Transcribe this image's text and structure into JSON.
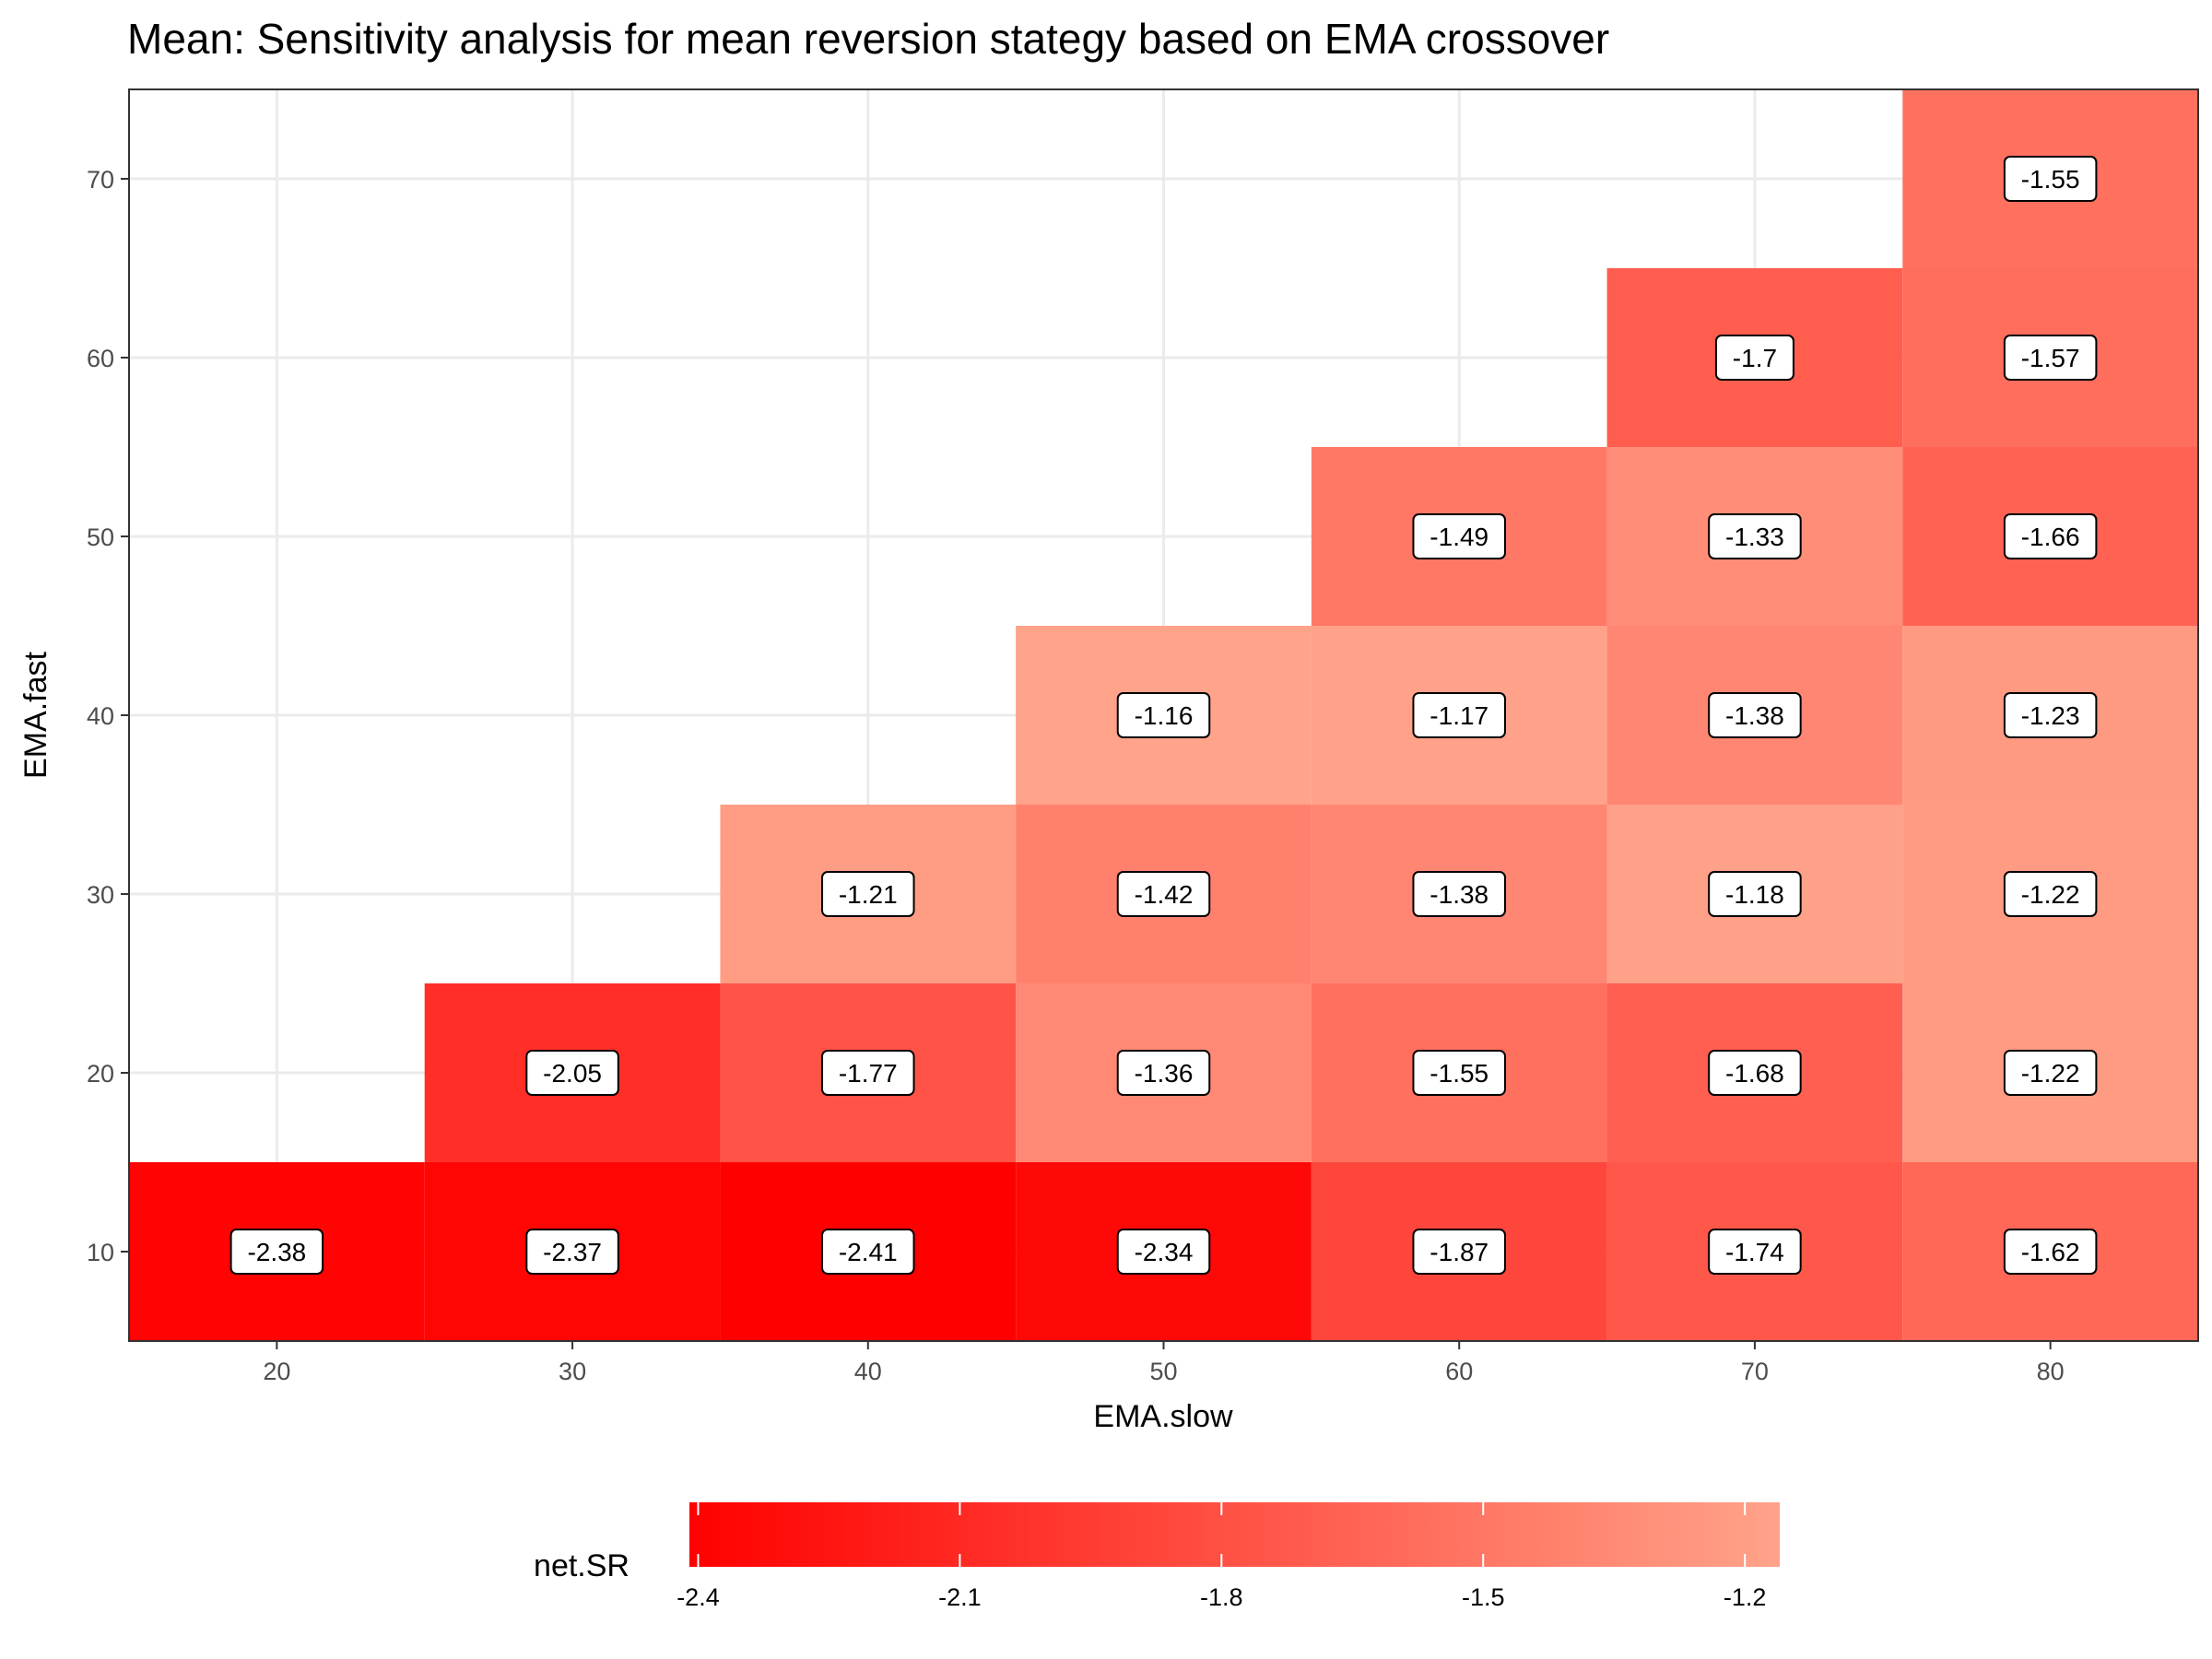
{
  "chart_data": {
    "type": "heatmap",
    "title": "Mean: Sensitivity analysis for mean reversion stategy based on EMA crossover",
    "xlabel": "EMA.slow",
    "ylabel": "EMA.fast",
    "x_ticks": [
      20,
      30,
      40,
      50,
      60,
      70,
      80
    ],
    "y_ticks": [
      10,
      20,
      30,
      40,
      50,
      60,
      70
    ],
    "xlim": [
      15,
      85
    ],
    "ylim": [
      5,
      75
    ],
    "grid": true,
    "cells": [
      {
        "x": 20,
        "y": 10,
        "value": -2.38,
        "label": "-2.38"
      },
      {
        "x": 30,
        "y": 10,
        "value": -2.37,
        "label": "-2.37"
      },
      {
        "x": 40,
        "y": 10,
        "value": -2.41,
        "label": "-2.41"
      },
      {
        "x": 50,
        "y": 10,
        "value": -2.34,
        "label": "-2.34"
      },
      {
        "x": 60,
        "y": 10,
        "value": -1.87,
        "label": "-1.87"
      },
      {
        "x": 70,
        "y": 10,
        "value": -1.74,
        "label": "-1.74"
      },
      {
        "x": 80,
        "y": 10,
        "value": -1.62,
        "label": "-1.62"
      },
      {
        "x": 30,
        "y": 20,
        "value": -2.05,
        "label": "-2.05"
      },
      {
        "x": 40,
        "y": 20,
        "value": -1.77,
        "label": "-1.77"
      },
      {
        "x": 50,
        "y": 20,
        "value": -1.36,
        "label": "-1.36"
      },
      {
        "x": 60,
        "y": 20,
        "value": -1.55,
        "label": "-1.55"
      },
      {
        "x": 70,
        "y": 20,
        "value": -1.68,
        "label": "-1.68"
      },
      {
        "x": 80,
        "y": 20,
        "value": -1.22,
        "label": "-1.22"
      },
      {
        "x": 40,
        "y": 30,
        "value": -1.21,
        "label": "-1.21"
      },
      {
        "x": 50,
        "y": 30,
        "value": -1.42,
        "label": "-1.42"
      },
      {
        "x": 60,
        "y": 30,
        "value": -1.38,
        "label": "-1.38"
      },
      {
        "x": 70,
        "y": 30,
        "value": -1.18,
        "label": "-1.18"
      },
      {
        "x": 80,
        "y": 30,
        "value": -1.22,
        "label": "-1.22"
      },
      {
        "x": 50,
        "y": 40,
        "value": -1.16,
        "label": "-1.16"
      },
      {
        "x": 60,
        "y": 40,
        "value": -1.17,
        "label": "-1.17"
      },
      {
        "x": 70,
        "y": 40,
        "value": -1.38,
        "label": "-1.38"
      },
      {
        "x": 80,
        "y": 40,
        "value": -1.23,
        "label": "-1.23"
      },
      {
        "x": 60,
        "y": 50,
        "value": -1.49,
        "label": "-1.49"
      },
      {
        "x": 70,
        "y": 50,
        "value": -1.33,
        "label": "-1.33"
      },
      {
        "x": 80,
        "y": 50,
        "value": -1.66,
        "label": "-1.66"
      },
      {
        "x": 70,
        "y": 60,
        "value": -1.7,
        "label": "-1.7"
      },
      {
        "x": 80,
        "y": 60,
        "value": -1.57,
        "label": "-1.57"
      },
      {
        "x": 80,
        "y": 70,
        "value": -1.55,
        "label": "-1.55"
      }
    ],
    "legend": {
      "title": "net.SR",
      "position": "bottom",
      "ticks": [
        -2.4,
        -2.1,
        -1.8,
        -1.5,
        -1.2
      ],
      "tick_labels": [
        "-2.4",
        "-2.1",
        "-1.8",
        "-1.5",
        "-1.2"
      ],
      "range": [
        -2.41,
        -1.16
      ],
      "low_color": "#ff0000",
      "high_color": "#ffa38a"
    }
  }
}
